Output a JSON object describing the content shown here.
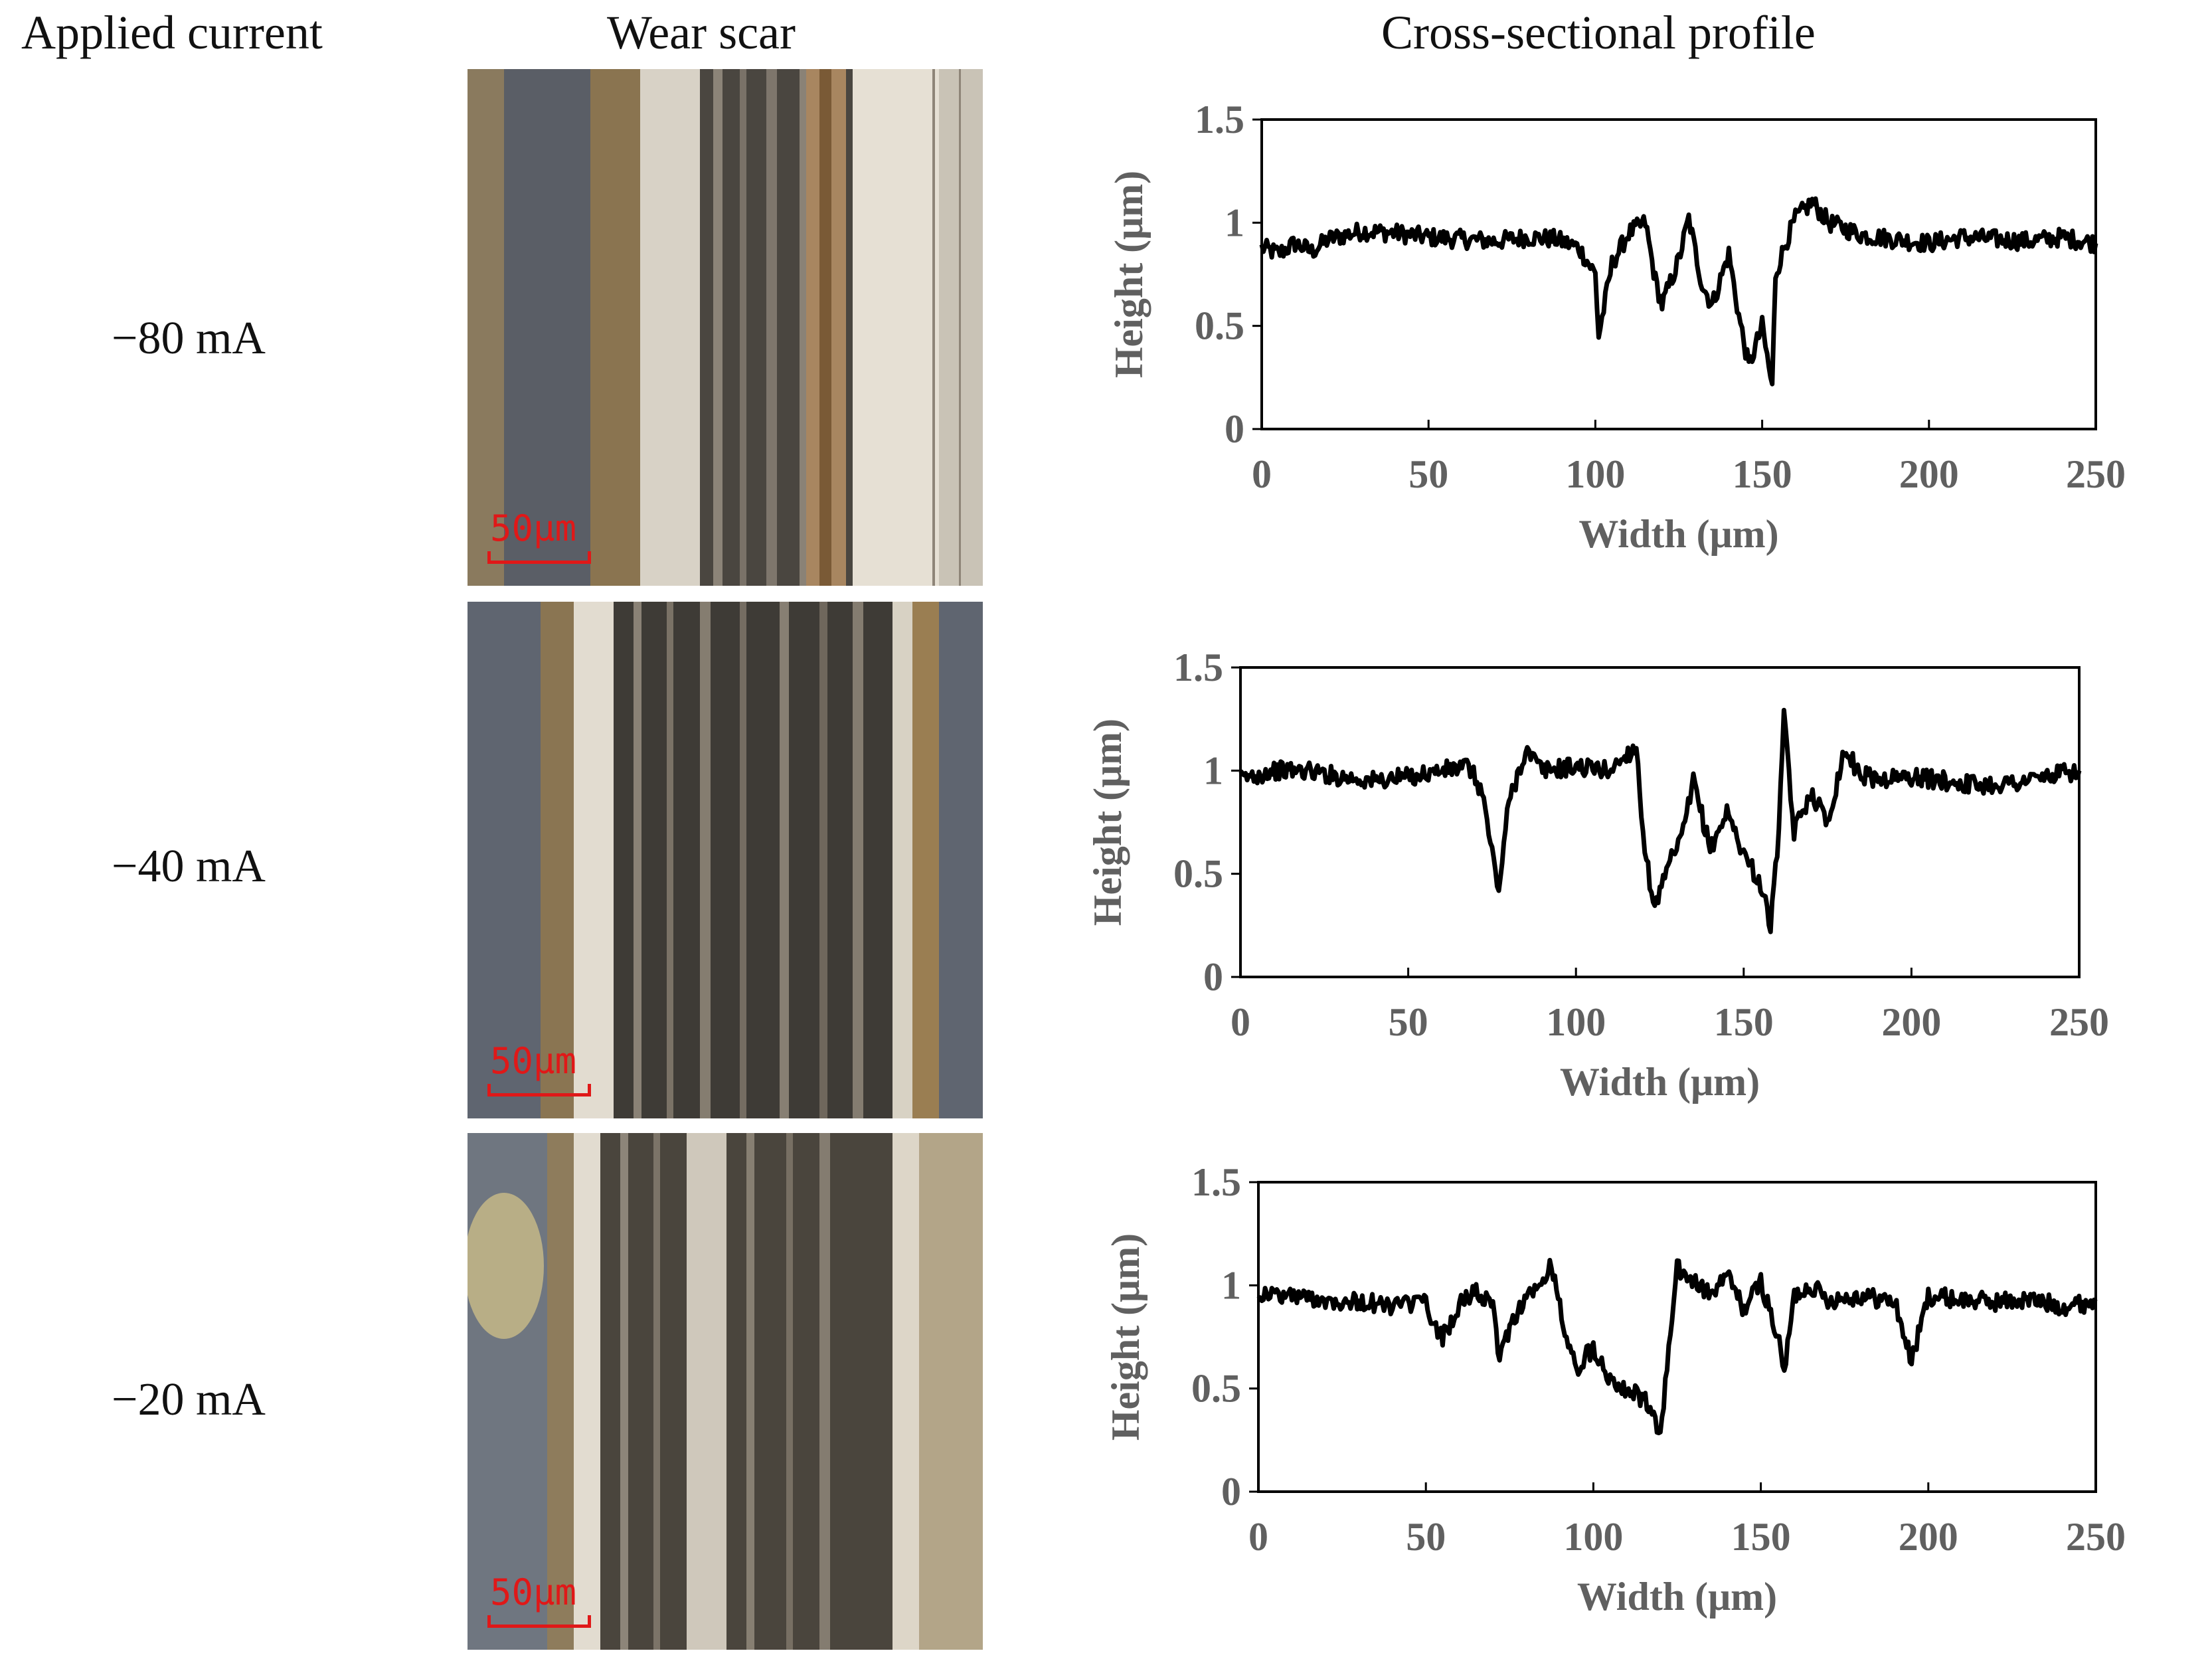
{
  "headers": {
    "current": "Applied current",
    "scar": "Wear scar",
    "profile": "Cross-sectional profile"
  },
  "rows": [
    {
      "current": "−80 mA",
      "scale_bar": "50μm"
    },
    {
      "current": "−40 mA",
      "scale_bar": "50μm"
    },
    {
      "current": "−20 mA",
      "scale_bar": "50μm"
    }
  ],
  "colors": {
    "trace": "#000000",
    "axis_text": "#606060",
    "scale_bar": "#e01818"
  },
  "chart_data": [
    {
      "type": "line",
      "title": "Cross-sectional profile (−80 mA)",
      "xlabel": "Width (μm)",
      "ylabel": "Height (μm)",
      "xlim": [
        0,
        250
      ],
      "ylim": [
        0,
        1.5
      ],
      "xticks": [
        "0",
        "50",
        "100",
        "150",
        "200",
        "250"
      ],
      "yticks": [
        "0",
        "0.5",
        "1",
        "1.5"
      ],
      "x": [
        0,
        5,
        10,
        15,
        20,
        25,
        30,
        40,
        50,
        60,
        70,
        80,
        88,
        95,
        100,
        101,
        105,
        110,
        115,
        118,
        120,
        125,
        128,
        132,
        135,
        140,
        143,
        146,
        148,
        150,
        153,
        154,
        157,
        160,
        165,
        170,
        180,
        190,
        200,
        210,
        220,
        230,
        240,
        250
      ],
      "y": [
        0.88,
        0.85,
        0.9,
        0.86,
        0.92,
        0.94,
        0.96,
        0.95,
        0.93,
        0.92,
        0.91,
        0.93,
        0.92,
        0.88,
        0.75,
        0.45,
        0.8,
        0.95,
        1.0,
        0.72,
        0.6,
        0.82,
        1.02,
        0.7,
        0.6,
        0.85,
        0.55,
        0.3,
        0.4,
        0.5,
        0.2,
        0.75,
        0.9,
        1.02,
        1.1,
        1.0,
        0.94,
        0.92,
        0.9,
        0.93,
        0.92,
        0.91,
        0.93,
        0.9
      ]
    },
    {
      "type": "line",
      "title": "Cross-sectional profile (−40 mA)",
      "xlabel": "Width (μm)",
      "ylabel": "Height (μm)",
      "xlim": [
        0,
        250
      ],
      "ylim": [
        0,
        1.5
      ],
      "xticks": [
        "0",
        "50",
        "100",
        "150",
        "200",
        "250"
      ],
      "yticks": [
        "0",
        "0.5",
        "1",
        "1.5"
      ],
      "x": [
        0,
        10,
        20,
        30,
        40,
        50,
        60,
        68,
        72,
        75,
        77,
        80,
        85,
        90,
        100,
        110,
        118,
        120,
        122,
        124,
        128,
        132,
        135,
        140,
        145,
        150,
        155,
        158,
        160,
        162,
        165,
        170,
        175,
        180,
        185,
        190,
        200,
        210,
        220,
        230,
        240,
        250
      ],
      "y": [
        0.96,
        1.0,
        1.0,
        0.97,
        0.95,
        0.97,
        1.0,
        1.02,
        0.9,
        0.6,
        0.42,
        0.85,
        1.1,
        1.0,
        1.02,
        1.0,
        1.12,
        0.7,
        0.45,
        0.35,
        0.55,
        0.7,
        0.95,
        0.62,
        0.8,
        0.6,
        0.45,
        0.25,
        0.6,
        1.25,
        0.7,
        0.9,
        0.75,
        1.1,
        0.98,
        0.96,
        0.97,
        0.95,
        0.93,
        0.94,
        0.97,
        1.0
      ]
    },
    {
      "type": "line",
      "title": "Cross-sectional profile (−20 mA)",
      "xlabel": "Width (μm)",
      "ylabel": "Height (μm)",
      "xlim": [
        0,
        250
      ],
      "ylim": [
        0,
        1.5
      ],
      "xticks": [
        "0",
        "50",
        "100",
        "150",
        "200",
        "250"
      ],
      "yticks": [
        "0",
        "0.5",
        "1",
        "1.5"
      ],
      "x": [
        0,
        10,
        20,
        30,
        40,
        50,
        52,
        55,
        60,
        65,
        70,
        72,
        75,
        80,
        85,
        87,
        90,
        92,
        95,
        100,
        105,
        110,
        115,
        118,
        120,
        122,
        125,
        130,
        135,
        140,
        145,
        150,
        155,
        157,
        160,
        165,
        170,
        180,
        190,
        195,
        200,
        210,
        220,
        230,
        240,
        250
      ],
      "y": [
        0.96,
        0.95,
        0.93,
        0.92,
        0.9,
        0.92,
        0.8,
        0.75,
        0.9,
        0.98,
        0.88,
        0.65,
        0.8,
        0.95,
        1.0,
        1.12,
        0.9,
        0.72,
        0.6,
        0.7,
        0.55,
        0.5,
        0.45,
        0.35,
        0.28,
        0.6,
        1.08,
        1.02,
        0.95,
        1.05,
        0.88,
        1.02,
        0.75,
        0.58,
        0.95,
        1.0,
        0.93,
        0.95,
        0.92,
        0.63,
        0.95,
        0.93,
        0.92,
        0.93,
        0.9,
        0.92
      ]
    }
  ]
}
